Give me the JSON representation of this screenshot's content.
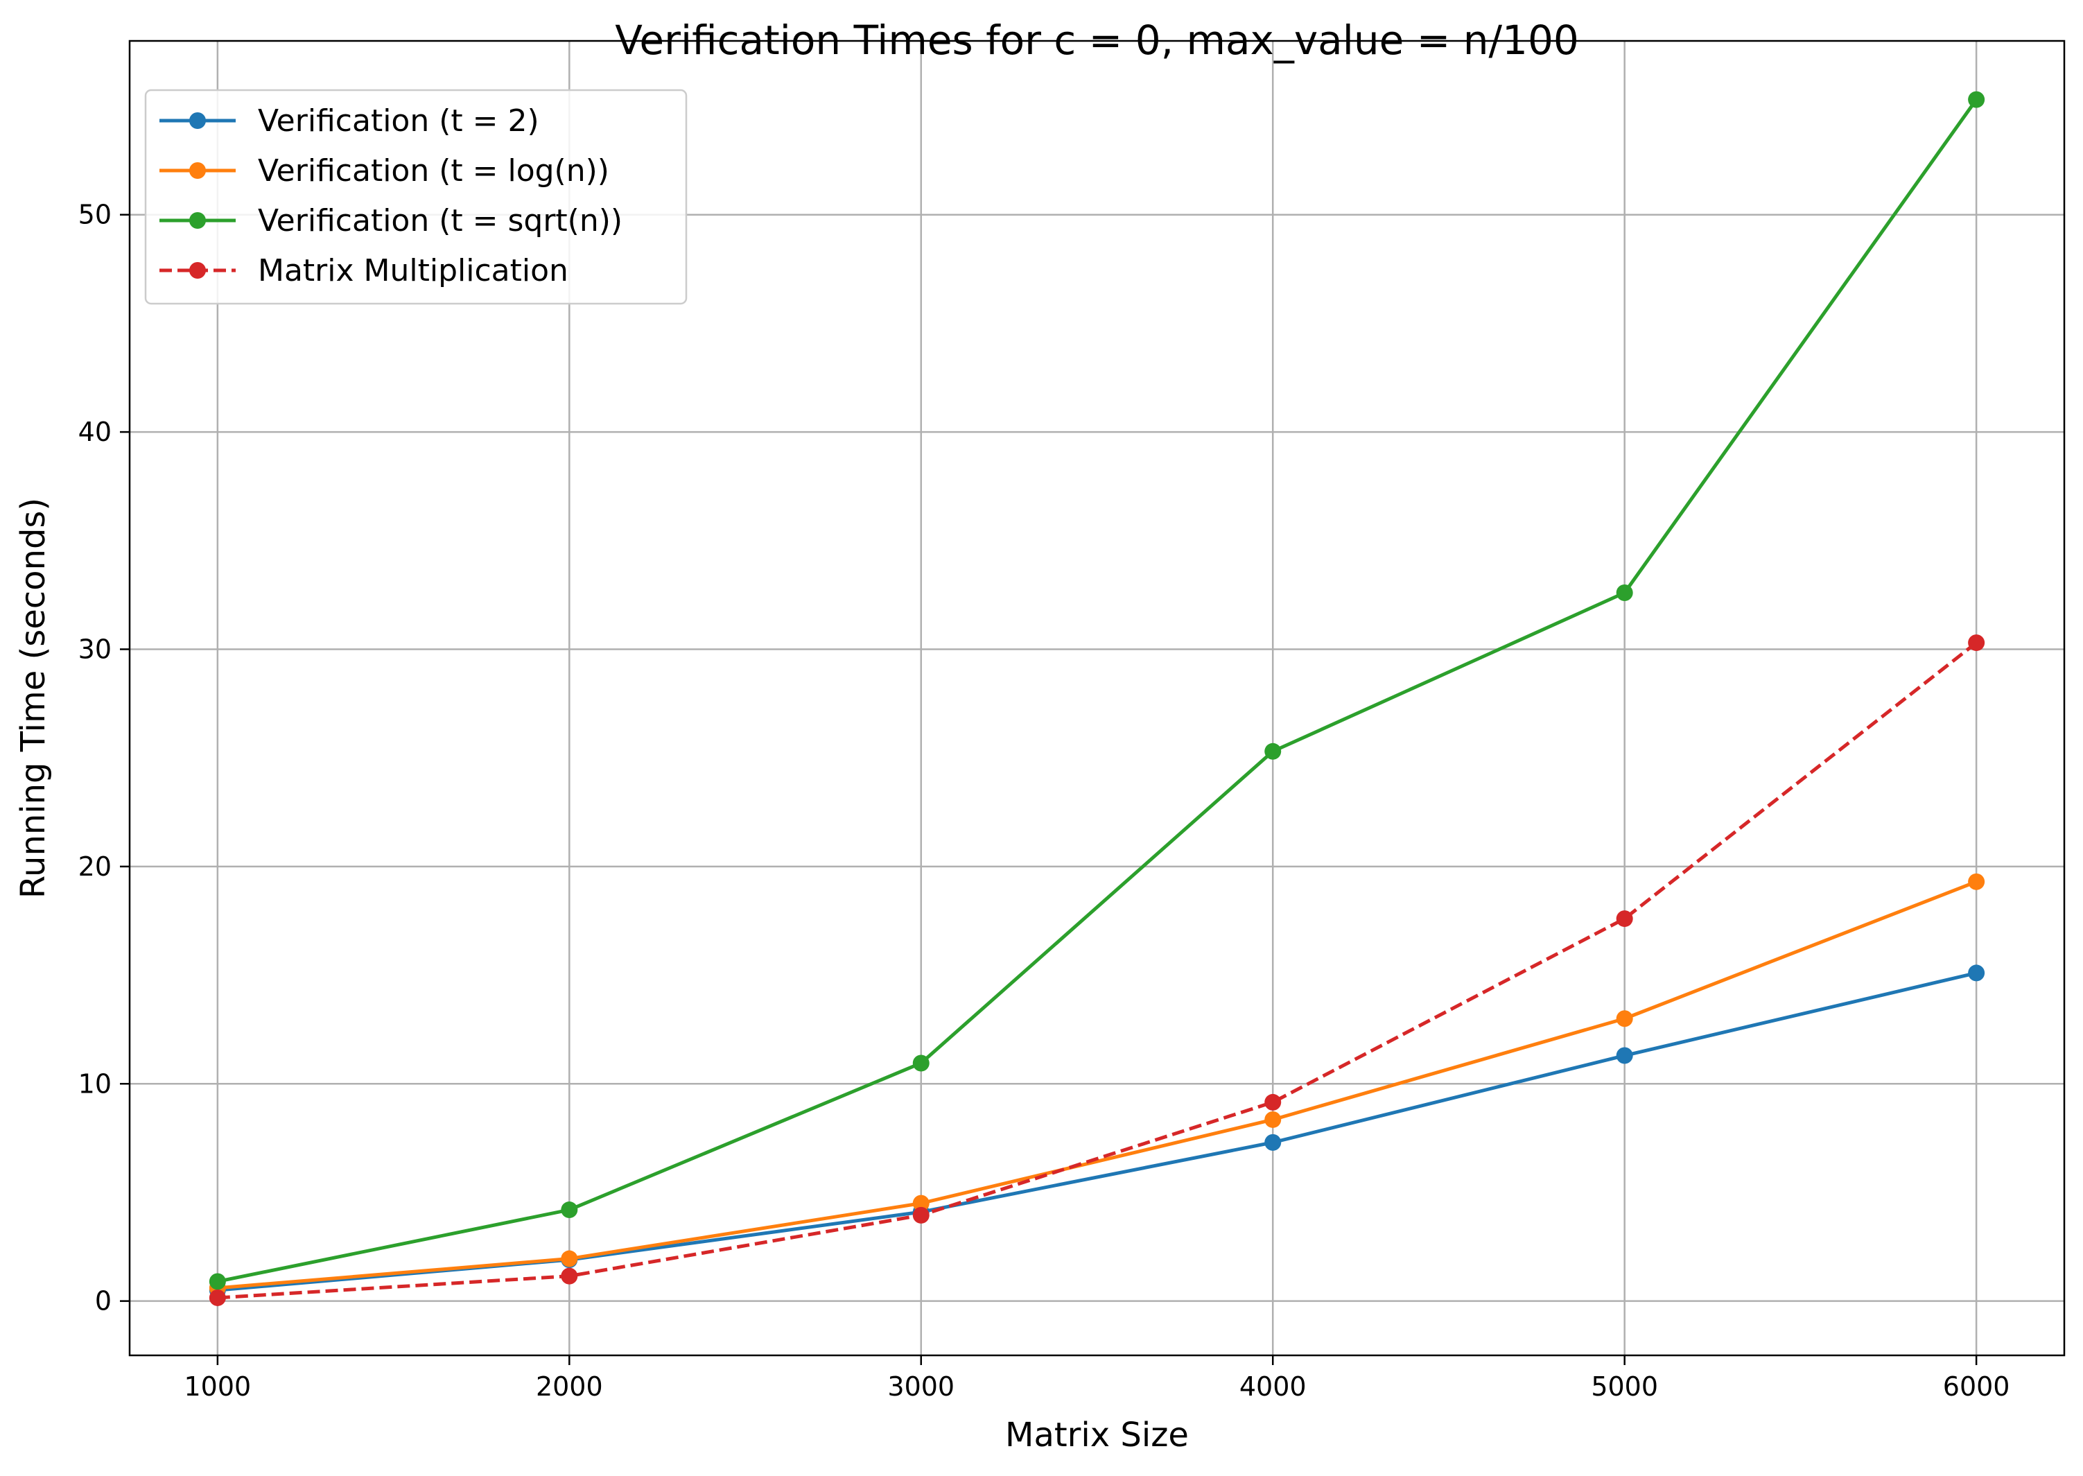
{
  "chart_data": {
    "type": "line",
    "title": "Verification Times for c = 0, max_value = n/100",
    "xlabel": "Matrix Size",
    "ylabel": "Running Time (seconds)",
    "x": [
      1000,
      2000,
      3000,
      4000,
      5000,
      6000
    ],
    "xlim": [
      750,
      6250
    ],
    "ylim": [
      -2.5,
      58
    ],
    "xticks": [
      "1000",
      "2000",
      "3000",
      "4000",
      "5000",
      "6000"
    ],
    "yticks": [
      "0",
      "10",
      "20",
      "30",
      "40",
      "50"
    ],
    "ytick_values": [
      0,
      10,
      20,
      30,
      40,
      50
    ],
    "grid": true,
    "legend_position": "top-left",
    "series": [
      {
        "name": "Verification (t = 2)",
        "values": [
          0.5,
          1.9,
          4.1,
          7.3,
          11.3,
          15.1
        ],
        "color": "#1f77b4",
        "style": "solid"
      },
      {
        "name": "Verification (t = log(n))",
        "values": [
          0.6,
          1.95,
          4.5,
          8.35,
          13.0,
          19.3
        ],
        "color": "#ff7f0e",
        "style": "solid"
      },
      {
        "name": "Verification (t = sqrt(n))",
        "values": [
          0.9,
          4.2,
          10.95,
          25.3,
          32.6,
          55.3
        ],
        "color": "#2ca02c",
        "style": "solid"
      },
      {
        "name": "Matrix Multiplication",
        "values": [
          0.15,
          1.15,
          3.95,
          9.15,
          17.6,
          30.3
        ],
        "color": "#d62728",
        "style": "dashed"
      }
    ]
  }
}
